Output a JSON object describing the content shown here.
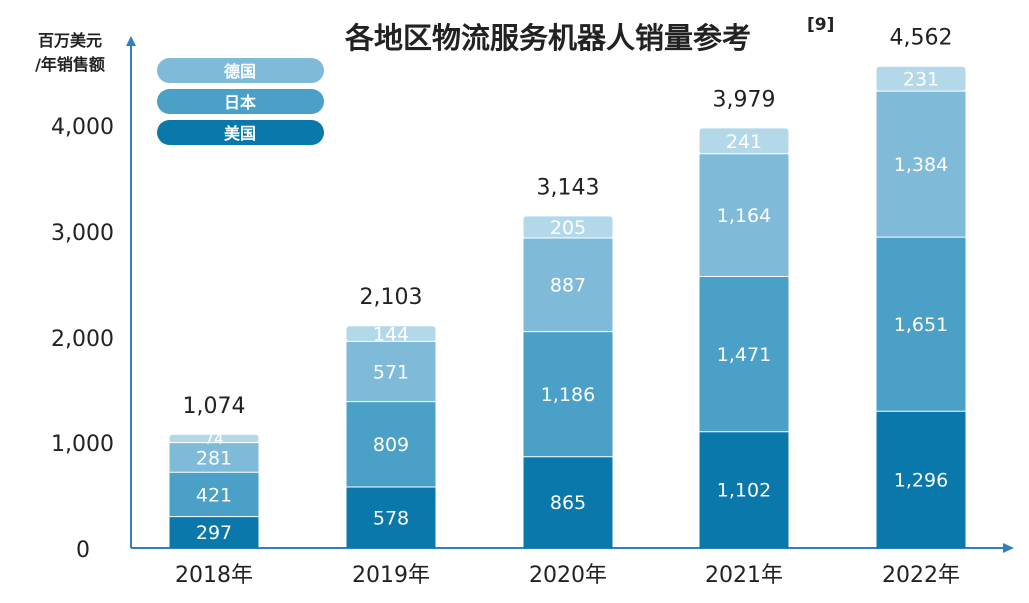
{
  "chart_data": {
    "type": "bar",
    "stacked": true,
    "title": "各地区物流服务机器人销量参考",
    "title_ref": "[9]",
    "ylabel_line1": "百万美元",
    "ylabel_line2": "/年销售额",
    "categories": [
      "2018年",
      "2019年",
      "2020年",
      "2021年",
      "2022年"
    ],
    "yticks": [
      "0",
      "1,000",
      "2,000",
      "3,000",
      "4,000"
    ],
    "ylim": [
      0,
      5000
    ],
    "series": [
      {
        "name": "美国",
        "values": [
          297,
          578,
          865,
          1102,
          1296
        ],
        "labels": [
          "297",
          "578",
          "865",
          "1,102",
          "1,296"
        ],
        "color": "#0a78ab"
      },
      {
        "name": "日本",
        "values": [
          421,
          809,
          1186,
          1471,
          1651
        ],
        "labels": [
          "421",
          "809",
          "1,186",
          "1,471",
          "1,651"
        ],
        "color": "#4ba0c7"
      },
      {
        "name": "德国",
        "values": [
          281,
          571,
          887,
          1164,
          1384
        ],
        "labels": [
          "281",
          "571",
          "887",
          "1,164",
          "1,384"
        ],
        "color": "#7fbbd9"
      },
      {
        "name": "",
        "values": [
          74,
          144,
          205,
          241,
          231
        ],
        "labels": [
          "74",
          "144",
          "205",
          "241",
          "231"
        ],
        "color": "#b3d8ea"
      }
    ],
    "totals": [
      "1,074",
      "2,103",
      "3,143",
      "3,979",
      "4,562"
    ],
    "legend": {
      "position": "top-left"
    },
    "grid": false,
    "axis_color": "#2f7fc1"
  }
}
